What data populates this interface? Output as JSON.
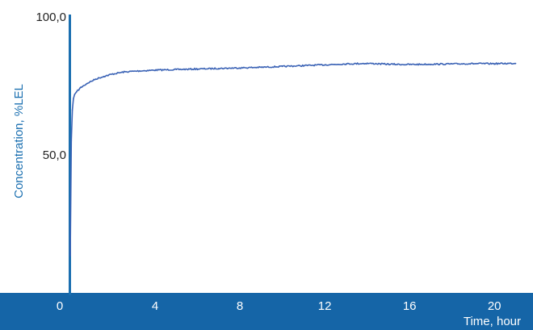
{
  "chart_data": {
    "type": "line",
    "title": "",
    "xlabel": "Time, hour",
    "ylabel": "Concentration, %LEL",
    "xlim": [
      0,
      21.4
    ],
    "ylim": [
      0,
      100
    ],
    "x_ticks": [
      "0",
      "4",
      "8",
      "12",
      "16",
      "20"
    ],
    "x_tick_values": [
      0,
      4,
      8,
      12,
      16,
      20
    ],
    "y_ticks": [
      "50,0",
      "100,0"
    ],
    "y_tick_values": [
      50,
      100
    ],
    "grid": false,
    "legend": "none",
    "colors": {
      "series": "#3a62b5",
      "axis": "#1a6fb0",
      "xband": "#1565a7",
      "band_text": "#ffffff",
      "label": "#1a6fb0"
    },
    "series": [
      {
        "x": [
          0,
          0.05,
          0.1,
          0.15,
          0.2,
          0.3,
          0.5,
          0.8,
          1.2,
          1.6,
          2.0,
          2.5,
          3,
          4,
          5,
          6,
          7,
          8,
          9,
          10,
          11,
          12,
          13,
          14,
          15,
          16,
          17,
          18,
          19,
          20,
          21
        ],
        "y": [
          14,
          55,
          66,
          70,
          71.5,
          72.5,
          74,
          75.5,
          77,
          78,
          78.8,
          79.5,
          79.8,
          80.2,
          80.4,
          80.6,
          80.8,
          81.0,
          81.2,
          81.5,
          81.8,
          82.1,
          82.4,
          82.6,
          82.3,
          82.2,
          82.3,
          82.4,
          82.5,
          82.5,
          82.6
        ]
      }
    ]
  }
}
